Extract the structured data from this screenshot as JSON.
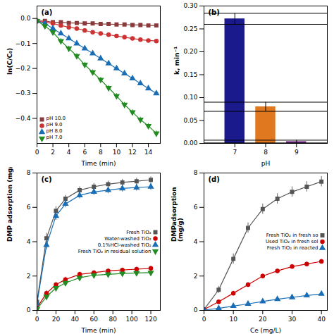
{
  "chart_data": [
    {
      "type": "line",
      "title": "(a)",
      "xlabel": "Time (min)",
      "ylabel": "ln(C/C₀)",
      "xlim": [
        0,
        15.5
      ],
      "ylim": [
        -0.5,
        0.05
      ],
      "xticks": [
        0,
        2,
        4,
        6,
        8,
        10,
        12,
        14
      ],
      "yticks": [
        -0.4,
        -0.3,
        -0.2,
        -0.1,
        {
          "value": 0,
          "label": "0.0"
        }
      ],
      "legend": "lower left",
      "x": [
        0,
        1,
        2,
        3,
        4,
        5,
        6,
        7,
        8,
        9,
        10,
        11,
        12,
        13,
        14,
        15
      ],
      "series": [
        {
          "name": "pH 10.0",
          "color": "#8B3A3A",
          "marker": "square",
          "values": [
            -0.01,
            -0.01,
            -0.015,
            -0.015,
            -0.018,
            -0.018,
            -0.02,
            -0.02,
            -0.022,
            -0.022,
            -0.024,
            -0.024,
            -0.026,
            -0.026,
            -0.028,
            -0.028
          ],
          "err": 0.005
        },
        {
          "name": "pH 9.0",
          "color": "#CC3333",
          "marker": "circle",
          "values": [
            -0.01,
            -0.015,
            -0.02,
            -0.028,
            -0.035,
            -0.04,
            -0.048,
            -0.055,
            -0.06,
            -0.065,
            -0.07,
            -0.075,
            -0.08,
            -0.085,
            -0.088,
            -0.09
          ],
          "err": 0.005
        },
        {
          "name": "pH 8.0",
          "color": "#1a6eb5",
          "marker": "triangle-up",
          "values": [
            -0.01,
            -0.02,
            -0.04,
            -0.06,
            -0.08,
            -0.1,
            -0.12,
            -0.14,
            -0.16,
            -0.18,
            -0.2,
            -0.22,
            -0.24,
            -0.26,
            -0.28,
            -0.3
          ],
          "err": 0.008
        },
        {
          "name": "pH 7.0",
          "color": "#228B22",
          "marker": "triangle-down",
          "values": [
            -0.01,
            -0.03,
            -0.055,
            -0.09,
            -0.12,
            -0.15,
            -0.185,
            -0.215,
            -0.245,
            -0.278,
            -0.31,
            -0.345,
            -0.375,
            -0.405,
            -0.43,
            -0.46
          ],
          "err": 0.01
        }
      ]
    },
    {
      "type": "bar",
      "title": "(b)",
      "xlabel": "pH",
      "ylabel": "k, min⁻¹",
      "x": [
        7,
        8,
        9
      ],
      "values": [
        0.272,
        0.08,
        0.004
      ],
      "err": [
        0.012,
        0.01,
        0.003
      ],
      "colors": [
        "#1a1a8c",
        "#e07820",
        "#7B2D8B"
      ],
      "xlim": [
        6,
        10
      ],
      "xticks": [
        7,
        8,
        9
      ],
      "ylim": [
        0,
        0.3
      ],
      "yticks": [
        {
          "value": 0,
          "label": "0.00"
        },
        0.05,
        {
          "value": 0.1,
          "label": "0.10"
        },
        0.15,
        {
          "value": 0.2,
          "label": "0.20"
        },
        0.25,
        {
          "value": 0.3,
          "label": "0.30"
        }
      ]
    },
    {
      "type": "line",
      "title": "(c)",
      "xlabel": "Time (min)",
      "ylabel": "DMP adsorption (mg/g)",
      "xlim": [
        0,
        130
      ],
      "ylim": [
        0,
        8
      ],
      "xticks": [
        0,
        20,
        40,
        60,
        80,
        100,
        120
      ],
      "yticks": [
        0,
        2,
        4,
        6,
        8
      ],
      "legend": "center right",
      "x": [
        0,
        10,
        20,
        30,
        45,
        60,
        75,
        90,
        105,
        120
      ],
      "series": [
        {
          "name": "Fresh TiO₂",
          "color": "#555555",
          "marker": "square",
          "values": [
            0.5,
            4.2,
            5.8,
            6.5,
            7.0,
            7.2,
            7.35,
            7.45,
            7.52,
            7.6
          ],
          "err": [
            0.2,
            0.3,
            0.25,
            0.2,
            0.2,
            0.2,
            0.18,
            0.18,
            0.18,
            0.18
          ]
        },
        {
          "name": "Water-washed TiO₂",
          "color": "#CC0000",
          "marker": "circle",
          "values": [
            0.15,
            1.0,
            1.5,
            1.8,
            2.1,
            2.2,
            2.3,
            2.35,
            2.4,
            2.45
          ],
          "err": [
            0.08,
            0.15,
            0.15,
            0.14,
            0.13,
            0.12,
            0.12,
            0.12,
            0.12,
            0.12
          ]
        },
        {
          "name": "0.1%HCl-washed TiO₂",
          "color": "#1a6eb5",
          "marker": "triangle-up",
          "values": [
            0.4,
            3.8,
            5.5,
            6.2,
            6.7,
            6.9,
            7.0,
            7.1,
            7.15,
            7.2
          ],
          "err": [
            0.18,
            0.28,
            0.25,
            0.22,
            0.2,
            0.2,
            0.2,
            0.2,
            0.2,
            0.2
          ]
        },
        {
          "name": "Fresh TiO₂ in residual solution",
          "color": "#228B22",
          "marker": "triangle-down",
          "values": [
            0.08,
            0.8,
            1.3,
            1.6,
            1.9,
            2.05,
            2.1,
            2.15,
            2.18,
            2.2
          ],
          "err": [
            0.05,
            0.12,
            0.12,
            0.12,
            0.12,
            0.1,
            0.1,
            0.1,
            0.1,
            0.1
          ]
        }
      ]
    },
    {
      "type": "line",
      "title": "(d)",
      "xlabel": "Ce (mg/L)",
      "ylabel": "DMPadsorption\n(mg/g)",
      "xlim": [
        0,
        42
      ],
      "ylim": [
        0,
        8
      ],
      "xticks": [
        0,
        10,
        20,
        30,
        40
      ],
      "yticks": [
        0,
        2,
        4,
        6,
        8
      ],
      "legend": "center right",
      "x": [
        0,
        5,
        10,
        15,
        20,
        25,
        30,
        35,
        40
      ],
      "series": [
        {
          "name": "Fresh TiO₂ in fresh so",
          "color": "#555555",
          "marker": "square",
          "values": [
            0.05,
            1.2,
            3.0,
            4.8,
            5.9,
            6.5,
            6.9,
            7.2,
            7.5
          ],
          "err": [
            0.05,
            0.2,
            0.3,
            0.3,
            0.3,
            0.3,
            0.3,
            0.3,
            0.3
          ]
        },
        {
          "name": "Used TiO₂ in fresh sol",
          "color": "#CC0000",
          "marker": "circle",
          "values": [
            0.05,
            0.5,
            1.0,
            1.5,
            2.0,
            2.3,
            2.55,
            2.7,
            2.85
          ],
          "err": [
            0.04,
            0.1,
            0.12,
            0.12,
            0.12,
            0.12,
            0.12,
            0.12,
            0.12
          ]
        },
        {
          "name": "Fresh TiO₂ in reacted",
          "color": "#1a6eb5",
          "marker": "triangle-up",
          "values": [
            0.02,
            0.12,
            0.25,
            0.38,
            0.52,
            0.65,
            0.76,
            0.87,
            0.96
          ],
          "err": [
            0.02,
            0.04,
            0.05,
            0.06,
            0.06,
            0.06,
            0.06,
            0.06,
            0.06
          ]
        }
      ]
    }
  ]
}
